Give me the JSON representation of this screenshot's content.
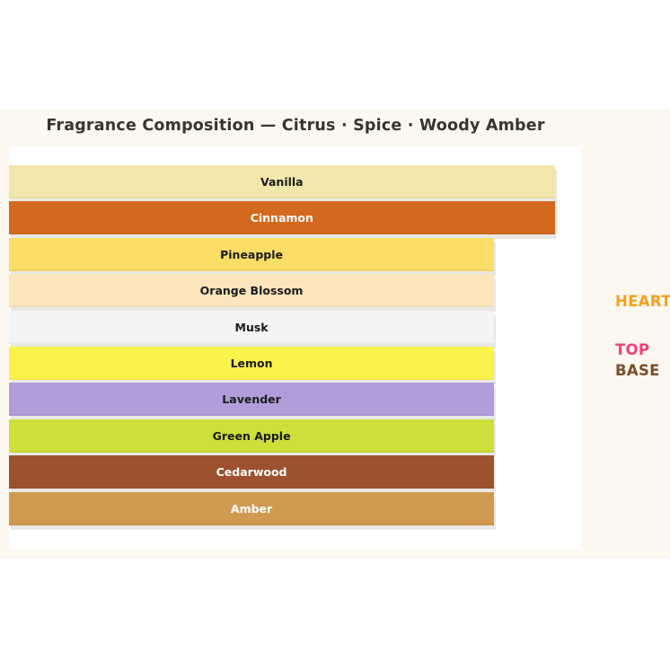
{
  "chart_data": {
    "type": "bar",
    "orientation": "horizontal",
    "title": "Fragrance Composition — Citrus · Spice · Woody Amber",
    "xlabel": "",
    "ylabel": "",
    "grid": false,
    "axes_visible": false,
    "xlim": [
      0,
      9.45
    ],
    "categories": [
      "Vanilla",
      "Cinnamon",
      "Pineapple",
      "Orange Blossom",
      "Musk",
      "Lemon",
      "Lavender",
      "Green Apple",
      "Cedarwood",
      "Amber"
    ],
    "values": [
      9,
      9,
      8,
      8,
      8,
      8,
      8,
      8,
      8,
      8
    ],
    "bar_colors": [
      "#f2e6ac",
      "#d2691e",
      "#fcdd67",
      "#fce5bb",
      "#f4f4f4",
      "#faf34b",
      "#b29cd9",
      "#cede3b",
      "#9e512e",
      "#d09b50"
    ],
    "label_colors": [
      "#1b1b1b",
      "#ffffff",
      "#1b1b1b",
      "#1b1b1b",
      "#1b1b1b",
      "#1b1b1b",
      "#1b1b1b",
      "#1b1b1b",
      "#ffffff",
      "#ffffff"
    ],
    "legend_position": "right",
    "annotations": [
      {
        "text": "HEART",
        "color": "#f5a11d"
      },
      {
        "text": "TOP",
        "color": "#f2427b"
      },
      {
        "text": "BASE",
        "color": "#7c4c29"
      }
    ]
  },
  "colors": {
    "page_background": "#ffffff",
    "figure_background": "#fcf8f0",
    "plot_background": "#ffffff",
    "bar_shadow": "#e9e7e4",
    "title_color": "#3a3431"
  }
}
